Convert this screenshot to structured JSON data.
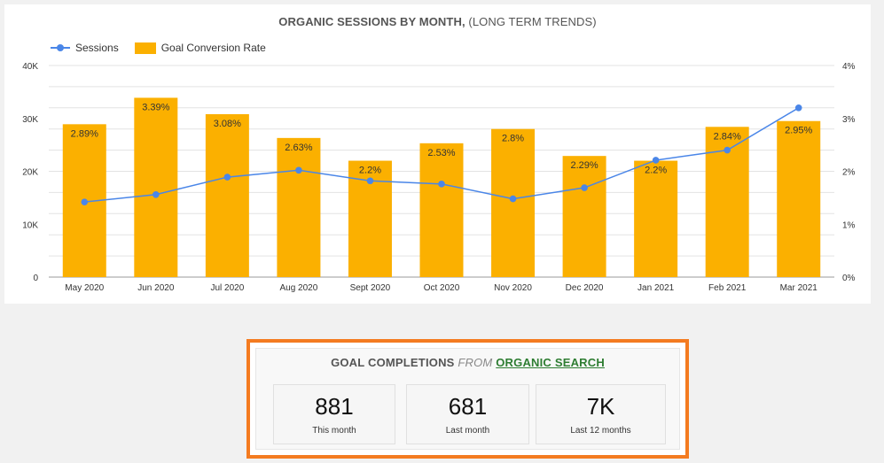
{
  "chart_title": {
    "bold": "ORGANIC SESSIONS BY MONTH,",
    "rest": " (LONG TERM TRENDS)"
  },
  "legend": {
    "sessions": "Sessions",
    "conversion": "Goal Conversion Rate"
  },
  "colors": {
    "bar": "#fbb000",
    "line": "#4a86e8",
    "kpi_border": "#f47b20",
    "link": "#2e7d32"
  },
  "chart_data": {
    "type": "bar",
    "categories": [
      "May 2020",
      "Jun 2020",
      "Jul 2020",
      "Aug 2020",
      "Sept 2020",
      "Oct 2020",
      "Nov 2020",
      "Dec 2020",
      "Jan 2021",
      "Feb 2021",
      "Mar 2021"
    ],
    "series": [
      {
        "name": "Goal Conversion Rate",
        "type": "bar",
        "axis": "right",
        "values": [
          2.89,
          3.39,
          3.08,
          2.63,
          2.2,
          2.53,
          2.8,
          2.29,
          2.2,
          2.84,
          2.95
        ],
        "labels": [
          "2.89%",
          "3.39%",
          "3.08%",
          "2.63%",
          "2.2%",
          "2.53%",
          "2.8%",
          "2.29%",
          "2.2%",
          "2.84%",
          "2.95%"
        ]
      },
      {
        "name": "Sessions",
        "type": "line",
        "axis": "left",
        "values": [
          14200,
          15600,
          18900,
          20200,
          18200,
          17600,
          14800,
          16900,
          22100,
          24000,
          32000
        ]
      }
    ],
    "left_axis": {
      "ticks": [
        "0",
        "10K",
        "20K",
        "30K",
        "40K"
      ],
      "tick_values": [
        0,
        10000,
        20000,
        30000,
        40000
      ],
      "ylim": [
        0,
        40000
      ]
    },
    "right_axis": {
      "ticks": [
        "0%",
        "1%",
        "2%",
        "3%",
        "4%"
      ],
      "tick_values": [
        0,
        1,
        2,
        3,
        4
      ],
      "ylim": [
        0,
        4
      ]
    },
    "grid": true,
    "legend_position": "top-left"
  },
  "kpi": {
    "title_part1": "GOAL COMPLETIONS",
    "title_part2": " FROM ",
    "title_part3": "ORGANIC SEARCH",
    "cards": [
      {
        "value": "881",
        "label": "This month"
      },
      {
        "value": "681",
        "label": "Last month"
      },
      {
        "value": "7K",
        "label": "Last 12 months"
      }
    ]
  }
}
